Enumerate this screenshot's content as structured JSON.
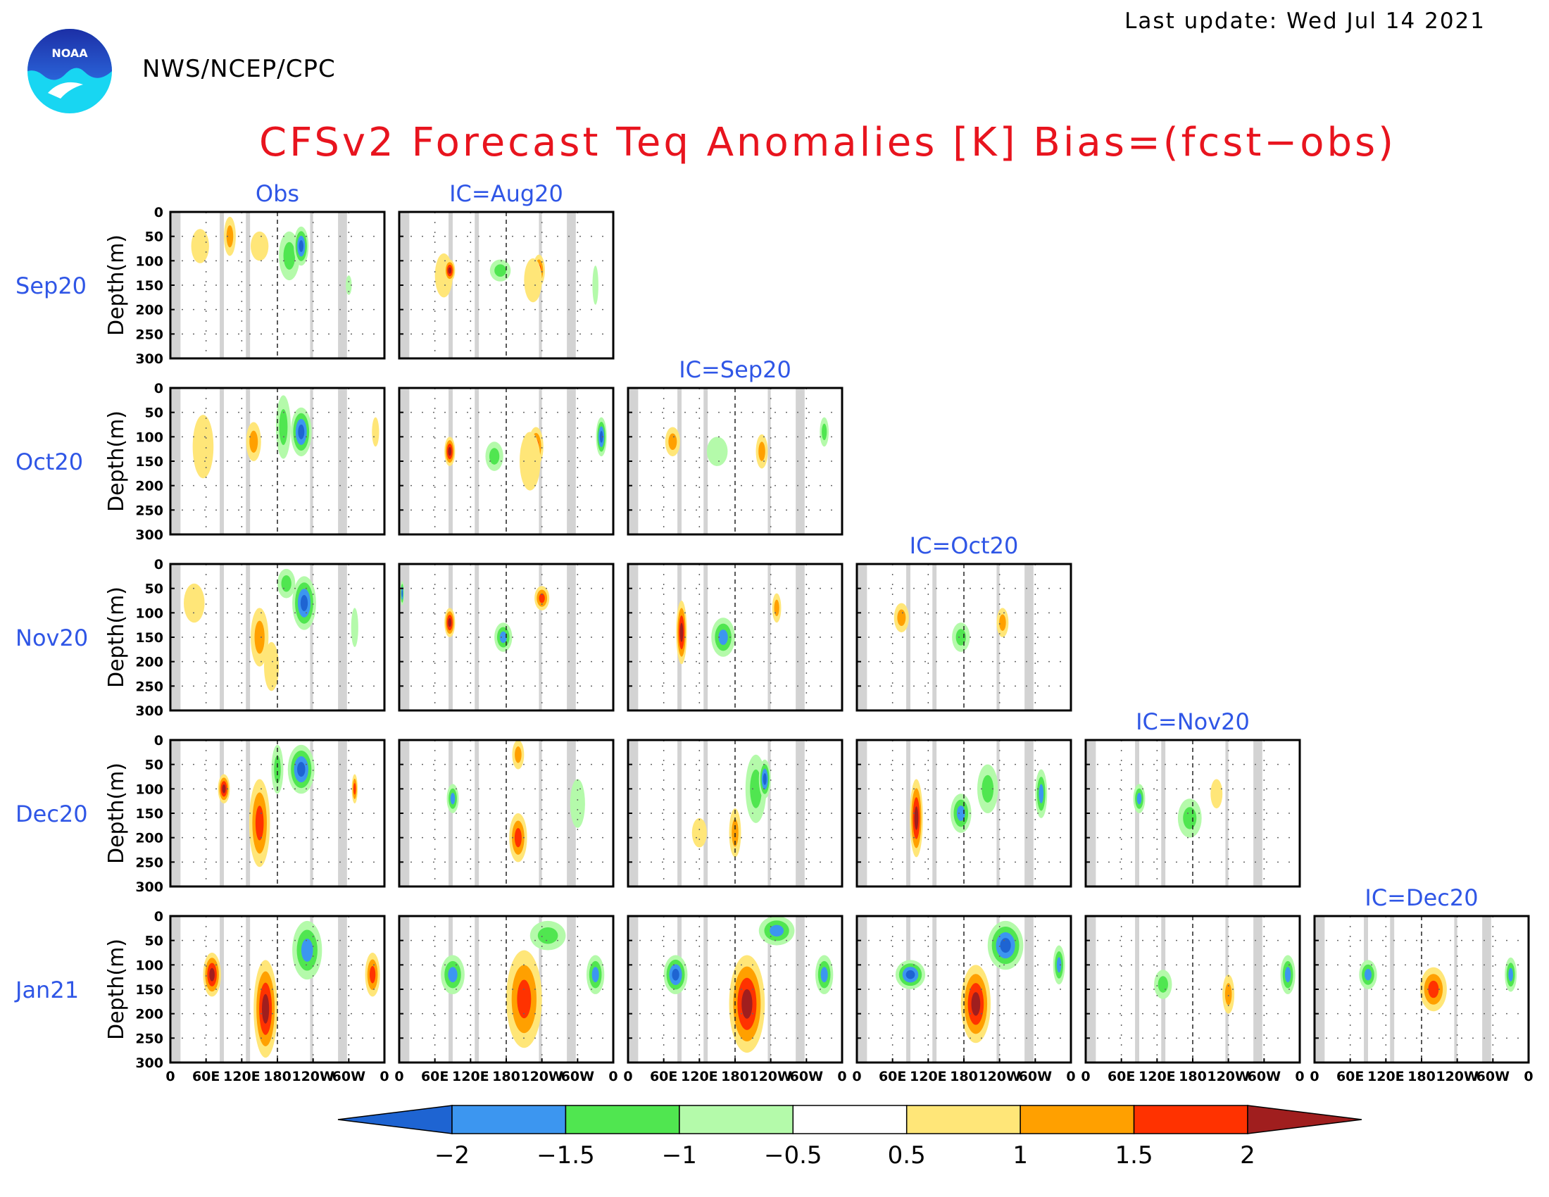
{
  "header": {
    "last_update": "Last update: Wed Jul 14 2021",
    "agency": "NWS/NCEP/CPC",
    "title": "CFSv2 Forecast Teq Anomalies [K] Bias=(fcst−obs)",
    "logo_text": "NOAA"
  },
  "chart_data": {
    "type": "heatmap",
    "title": "CFSv2 Forecast Teq Anomalies [K] Bias=(fcst−obs)",
    "ylabel": "Depth(m)",
    "xlabel": "",
    "rows": [
      "Sep20",
      "Oct20",
      "Nov20",
      "Dec20",
      "Jan21"
    ],
    "columns": [
      "Obs",
      "IC=Aug20",
      "IC=Sep20",
      "IC=Oct20",
      "IC=Nov20",
      "IC=Dec20"
    ],
    "yticks": [
      0,
      50,
      100,
      150,
      200,
      250,
      300
    ],
    "ylim": [
      0,
      300
    ],
    "xticks": [
      "0",
      "60E",
      "120E",
      "180",
      "120W",
      "60W",
      "0"
    ],
    "xlim": [
      0,
      360
    ],
    "land_mask_lon": [
      [
        2,
        17
      ],
      [
        83,
        90
      ],
      [
        127,
        134
      ],
      [
        235,
        240
      ],
      [
        282,
        297
      ]
    ],
    "dateline_lon": 180,
    "grid": "dotted",
    "colorbar": {
      "ticks": [
        "−2",
        "−1.5",
        "−1",
        "−0.5",
        "0.5",
        "1",
        "1.5",
        "2"
      ],
      "colors": [
        "#1e64d2",
        "#3c96f0",
        "#50e650",
        "#b4faaa",
        "#ffffff",
        "#ffe678",
        "#ffa000",
        "#ff3200",
        "#a01e1e"
      ]
    },
    "panels": [
      {
        "row": "Sep20",
        "column": "Obs",
        "anomalies": [
          {
            "lon": 50,
            "depth": 70,
            "w": 30,
            "d": 70,
            "v": 0.7
          },
          {
            "lon": 100,
            "depth": 50,
            "w": 20,
            "d": 80,
            "v": 1.1
          },
          {
            "lon": 150,
            "depth": 70,
            "w": 30,
            "d": 60,
            "v": 0.8
          },
          {
            "lon": 200,
            "depth": 90,
            "w": 35,
            "d": 100,
            "v": -1.2
          },
          {
            "lon": 220,
            "depth": 70,
            "w": 25,
            "d": 80,
            "v": -2.2
          },
          {
            "lon": 300,
            "depth": 150,
            "w": 10,
            "d": 40,
            "v": -0.7
          }
        ]
      },
      {
        "row": "Sep20",
        "column": "IC=Aug20",
        "anomalies": [
          {
            "lon": 75,
            "depth": 130,
            "w": 30,
            "d": 90,
            "v": 0.8
          },
          {
            "lon": 85,
            "depth": 120,
            "w": 18,
            "d": 45,
            "v": 2.2
          },
          {
            "lon": 170,
            "depth": 120,
            "w": 35,
            "d": 45,
            "v": -1.3
          },
          {
            "lon": 235,
            "depth": 120,
            "w": 20,
            "d": 65,
            "v": 1.6
          },
          {
            "lon": 225,
            "depth": 140,
            "w": 30,
            "d": 90,
            "v": 0.8
          },
          {
            "lon": 330,
            "depth": 150,
            "w": 10,
            "d": 80,
            "v": -0.7
          }
        ]
      },
      {
        "row": "Oct20",
        "column": "Obs",
        "anomalies": [
          {
            "lon": 55,
            "depth": 120,
            "w": 35,
            "d": 130,
            "v": 0.8
          },
          {
            "lon": 140,
            "depth": 110,
            "w": 25,
            "d": 80,
            "v": 1.2
          },
          {
            "lon": 220,
            "depth": 90,
            "w": 35,
            "d": 100,
            "v": -2.2
          },
          {
            "lon": 190,
            "depth": 80,
            "w": 25,
            "d": 130,
            "v": -1.3
          },
          {
            "lon": 345,
            "depth": 90,
            "w": 12,
            "d": 60,
            "v": 0.8
          }
        ]
      },
      {
        "row": "Oct20",
        "column": "IC=Aug20",
        "anomalies": [
          {
            "lon": 85,
            "depth": 130,
            "w": 18,
            "d": 60,
            "v": 2.2
          },
          {
            "lon": 160,
            "depth": 140,
            "w": 30,
            "d": 60,
            "v": -1.3
          },
          {
            "lon": 230,
            "depth": 120,
            "w": 25,
            "d": 80,
            "v": 1.6
          },
          {
            "lon": 220,
            "depth": 150,
            "w": 35,
            "d": 120,
            "v": 0.7
          },
          {
            "lon": 340,
            "depth": 100,
            "w": 18,
            "d": 80,
            "v": -2.1
          }
        ]
      },
      {
        "row": "Oct20",
        "column": "IC=Sep20",
        "anomalies": [
          {
            "lon": 75,
            "depth": 110,
            "w": 25,
            "d": 60,
            "v": 1.3
          },
          {
            "lon": 150,
            "depth": 130,
            "w": 35,
            "d": 60,
            "v": -0.7
          },
          {
            "lon": 225,
            "depth": 130,
            "w": 20,
            "d": 70,
            "v": 1.4
          },
          {
            "lon": 330,
            "depth": 90,
            "w": 15,
            "d": 60,
            "v": -1.2
          }
        ]
      },
      {
        "row": "Nov20",
        "column": "Obs",
        "anomalies": [
          {
            "lon": 40,
            "depth": 80,
            "w": 35,
            "d": 80,
            "v": 0.8
          },
          {
            "lon": 150,
            "depth": 150,
            "w": 30,
            "d": 120,
            "v": 1.4
          },
          {
            "lon": 170,
            "depth": 210,
            "w": 25,
            "d": 100,
            "v": 0.9
          },
          {
            "lon": 225,
            "depth": 80,
            "w": 40,
            "d": 110,
            "v": -2.2
          },
          {
            "lon": 195,
            "depth": 40,
            "w": 30,
            "d": 60,
            "v": -1.3
          },
          {
            "lon": 310,
            "depth": 130,
            "w": 12,
            "d": 80,
            "v": -0.9
          }
        ]
      },
      {
        "row": "Nov20",
        "column": "IC=Aug20",
        "anomalies": [
          {
            "lon": 85,
            "depth": 120,
            "w": 18,
            "d": 60,
            "v": 2.2
          },
          {
            "lon": 175,
            "depth": 150,
            "w": 30,
            "d": 60,
            "v": -1.8
          },
          {
            "lon": 240,
            "depth": 70,
            "w": 25,
            "d": 50,
            "v": 1.6
          },
          {
            "lon": 5,
            "depth": 60,
            "w": 6,
            "d": 50,
            "v": -2.0
          }
        ]
      },
      {
        "row": "Nov20",
        "column": "IC=Sep20",
        "anomalies": [
          {
            "lon": 90,
            "depth": 140,
            "w": 18,
            "d": 130,
            "v": 2.2
          },
          {
            "lon": 160,
            "depth": 150,
            "w": 40,
            "d": 80,
            "v": -1.8
          },
          {
            "lon": 250,
            "depth": 90,
            "w": 15,
            "d": 60,
            "v": 1.1
          }
        ]
      },
      {
        "row": "Nov20",
        "column": "IC=Oct20",
        "anomalies": [
          {
            "lon": 75,
            "depth": 110,
            "w": 25,
            "d": 60,
            "v": 1.2
          },
          {
            "lon": 175,
            "depth": 150,
            "w": 30,
            "d": 60,
            "v": -1.2
          },
          {
            "lon": 245,
            "depth": 120,
            "w": 20,
            "d": 60,
            "v": 1.4
          }
        ]
      },
      {
        "row": "Dec20",
        "column": "Obs",
        "anomalies": [
          {
            "lon": 90,
            "depth": 100,
            "w": 20,
            "d": 60,
            "v": 2.1
          },
          {
            "lon": 150,
            "depth": 170,
            "w": 35,
            "d": 180,
            "v": 1.8
          },
          {
            "lon": 220,
            "depth": 60,
            "w": 45,
            "d": 100,
            "v": -2.1
          },
          {
            "lon": 180,
            "depth": 60,
            "w": 20,
            "d": 100,
            "v": -1.2
          },
          {
            "lon": 310,
            "depth": 100,
            "w": 10,
            "d": 60,
            "v": 1.6
          }
        ]
      },
      {
        "row": "Dec20",
        "column": "IC=Aug20",
        "anomalies": [
          {
            "lon": 90,
            "depth": 120,
            "w": 20,
            "d": 60,
            "v": -1.8
          },
          {
            "lon": 200,
            "depth": 30,
            "w": 20,
            "d": 60,
            "v": 1.1
          },
          {
            "lon": 200,
            "depth": 200,
            "w": 30,
            "d": 100,
            "v": 1.8
          },
          {
            "lon": 300,
            "depth": 130,
            "w": 25,
            "d": 100,
            "v": -0.8
          }
        ]
      },
      {
        "row": "Dec20",
        "column": "IC=Sep20",
        "anomalies": [
          {
            "lon": 215,
            "depth": 100,
            "w": 35,
            "d": 140,
            "v": -1.3
          },
          {
            "lon": 230,
            "depth": 80,
            "w": 20,
            "d": 80,
            "v": -2.1
          },
          {
            "lon": 180,
            "depth": 190,
            "w": 20,
            "d": 100,
            "v": 1.2
          },
          {
            "lon": 120,
            "depth": 190,
            "w": 25,
            "d": 60,
            "v": 0.8
          }
        ]
      },
      {
        "row": "Dec20",
        "column": "IC=Oct20",
        "anomalies": [
          {
            "lon": 100,
            "depth": 160,
            "w": 22,
            "d": 160,
            "v": 2.2
          },
          {
            "lon": 175,
            "depth": 150,
            "w": 35,
            "d": 80,
            "v": -1.8
          },
          {
            "lon": 220,
            "depth": 100,
            "w": 35,
            "d": 100,
            "v": -1.3
          },
          {
            "lon": 310,
            "depth": 110,
            "w": 20,
            "d": 100,
            "v": -1.8
          }
        ]
      },
      {
        "row": "Dec20",
        "column": "IC=Nov20",
        "anomalies": [
          {
            "lon": 90,
            "depth": 120,
            "w": 20,
            "d": 60,
            "v": -1.8
          },
          {
            "lon": 175,
            "depth": 160,
            "w": 40,
            "d": 80,
            "v": -1.2
          },
          {
            "lon": 220,
            "depth": 110,
            "w": 20,
            "d": 60,
            "v": 0.8
          }
        ]
      },
      {
        "row": "Jan21",
        "column": "Obs",
        "anomalies": [
          {
            "lon": 70,
            "depth": 120,
            "w": 30,
            "d": 90,
            "v": 2.1
          },
          {
            "lon": 160,
            "depth": 190,
            "w": 40,
            "d": 200,
            "v": 2.0
          },
          {
            "lon": 230,
            "depth": 70,
            "w": 50,
            "d": 120,
            "v": -1.6
          },
          {
            "lon": 340,
            "depth": 120,
            "w": 25,
            "d": 90,
            "v": 1.6
          }
        ]
      },
      {
        "row": "Jan21",
        "column": "IC=Aug20",
        "anomalies": [
          {
            "lon": 90,
            "depth": 120,
            "w": 40,
            "d": 80,
            "v": -1.8
          },
          {
            "lon": 210,
            "depth": 170,
            "w": 60,
            "d": 200,
            "v": 1.9
          },
          {
            "lon": 250,
            "depth": 40,
            "w": 60,
            "d": 60,
            "v": -1.2
          },
          {
            "lon": 330,
            "depth": 120,
            "w": 30,
            "d": 80,
            "v": -1.8
          }
        ]
      },
      {
        "row": "Jan21",
        "column": "IC=Sep20",
        "anomalies": [
          {
            "lon": 80,
            "depth": 120,
            "w": 40,
            "d": 80,
            "v": -2.0
          },
          {
            "lon": 200,
            "depth": 180,
            "w": 60,
            "d": 200,
            "v": 2.1
          },
          {
            "lon": 250,
            "depth": 30,
            "w": 60,
            "d": 60,
            "v": -1.8
          },
          {
            "lon": 330,
            "depth": 120,
            "w": 30,
            "d": 80,
            "v": -1.8
          }
        ]
      },
      {
        "row": "Jan21",
        "column": "IC=Oct20",
        "anomalies": [
          {
            "lon": 90,
            "depth": 120,
            "w": 50,
            "d": 60,
            "v": -2.0
          },
          {
            "lon": 200,
            "depth": 180,
            "w": 50,
            "d": 160,
            "v": 2.1
          },
          {
            "lon": 250,
            "depth": 60,
            "w": 60,
            "d": 100,
            "v": -2.1
          },
          {
            "lon": 340,
            "depth": 100,
            "w": 20,
            "d": 80,
            "v": -1.8
          }
        ]
      },
      {
        "row": "Jan21",
        "column": "IC=Nov20",
        "anomalies": [
          {
            "lon": 130,
            "depth": 140,
            "w": 30,
            "d": 60,
            "v": -1.3
          },
          {
            "lon": 240,
            "depth": 160,
            "w": 20,
            "d": 80,
            "v": 1.2
          },
          {
            "lon": 340,
            "depth": 120,
            "w": 25,
            "d": 80,
            "v": -1.8
          }
        ]
      },
      {
        "row": "Jan21",
        "column": "IC=Dec20",
        "anomalies": [
          {
            "lon": 90,
            "depth": 120,
            "w": 30,
            "d": 60,
            "v": -1.8
          },
          {
            "lon": 200,
            "depth": 150,
            "w": 45,
            "d": 90,
            "v": 1.9
          },
          {
            "lon": 330,
            "depth": 120,
            "w": 20,
            "d": 70,
            "v": -1.6
          }
        ]
      }
    ]
  }
}
